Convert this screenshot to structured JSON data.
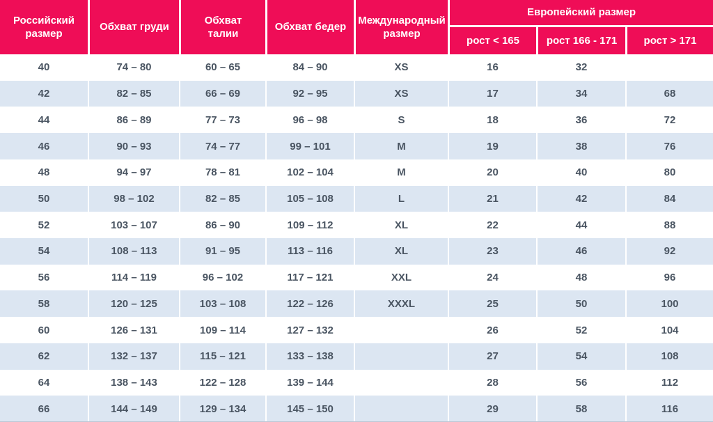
{
  "colors": {
    "header_bg": "#ef0d57",
    "header_text": "#ffffff",
    "row_bg": "#ffffff",
    "row_alt_bg": "#dce6f2",
    "cell_text": "#4a5562",
    "separator": "#ffffff"
  },
  "chart_data": {
    "type": "table",
    "title": "",
    "header": {
      "russian_size": "Российский размер",
      "chest": "Обхват груди",
      "waist": "Обхват талии",
      "hips": "Обхват бедер",
      "international_size": "Международный размер",
      "european_size_group": "Европейский размер",
      "european_height_cols": [
        "рост < 165",
        "рост 166 - 171",
        "рост > 171"
      ]
    },
    "rows": [
      [
        "40",
        "74 – 80",
        "60 – 65",
        "84 – 90",
        "XS",
        "16",
        "32",
        ""
      ],
      [
        "42",
        "82 – 85",
        "66 – 69",
        "92 – 95",
        "XS",
        "17",
        "34",
        "68"
      ],
      [
        "44",
        "86 – 89",
        "77 – 73",
        "96 – 98",
        "S",
        "18",
        "36",
        "72"
      ],
      [
        "46",
        "90 – 93",
        "74 – 77",
        "99 – 101",
        "M",
        "19",
        "38",
        "76"
      ],
      [
        "48",
        "94 – 97",
        "78 – 81",
        "102 – 104",
        "M",
        "20",
        "40",
        "80"
      ],
      [
        "50",
        "98 – 102",
        "82 – 85",
        "105 – 108",
        "L",
        "21",
        "42",
        "84"
      ],
      [
        "52",
        "103 – 107",
        "86 – 90",
        "109 – 112",
        "XL",
        "22",
        "44",
        "88"
      ],
      [
        "54",
        "108 – 113",
        "91 – 95",
        "113 – 116",
        "XL",
        "23",
        "46",
        "92"
      ],
      [
        "56",
        "114 – 119",
        "96 – 102",
        "117 – 121",
        "XXL",
        "24",
        "48",
        "96"
      ],
      [
        "58",
        "120 – 125",
        "103 – 108",
        "122 – 126",
        "XXXL",
        "25",
        "50",
        "100"
      ],
      [
        "60",
        "126 – 131",
        "109 – 114",
        "127 – 132",
        "",
        "26",
        "52",
        "104"
      ],
      [
        "62",
        "132 – 137",
        "115 – 121",
        "133 – 138",
        "",
        "27",
        "54",
        "108"
      ],
      [
        "64",
        "138 – 143",
        "122 – 128",
        "139 – 144",
        "",
        "28",
        "56",
        "112"
      ],
      [
        "66",
        "144 – 149",
        "129 – 134",
        "145 – 150",
        "",
        "29",
        "58",
        "116"
      ]
    ]
  }
}
